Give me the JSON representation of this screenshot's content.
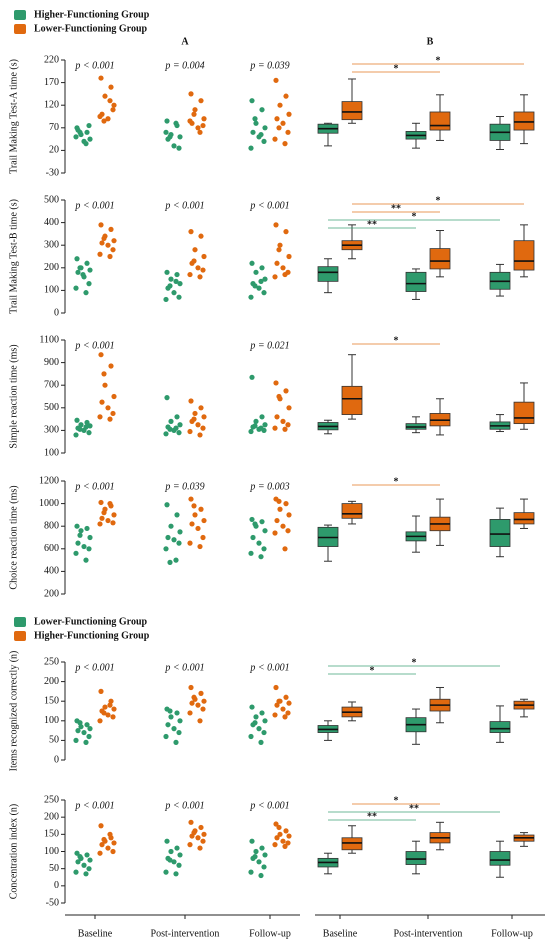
{
  "panel_labels": [
    "A",
    "B"
  ],
  "categories": [
    "Baseline",
    "Post-intervention",
    "Follow-up"
  ],
  "legends": [
    {
      "entries": [
        {
          "name": "Higher-Functioning Group",
          "color": "#2e9a6c"
        },
        {
          "name": "Lower-Functioning Group",
          "color": "#e0690f"
        }
      ]
    },
    {
      "entries": [
        {
          "name": "Lower-Functioning Group",
          "color": "#2e9a6c"
        },
        {
          "name": "Higher-Functioning Group",
          "color": "#e0690f"
        }
      ]
    }
  ],
  "chart_data": [
    {
      "type": "stripbox",
      "ylabel": "Trail Making Test-A time (s)",
      "ylim": [
        -30,
        220
      ],
      "yticks": [
        -30,
        20,
        70,
        120,
        170,
        220
      ],
      "pvalues": [
        "p < 0.001",
        "p = 0.004",
        "p = 0.039"
      ],
      "series": [
        {
          "color": "#2e9a6c",
          "points": [
            [
              70,
              60,
              55,
              45,
              65,
              40,
              75,
              50,
              35,
              60
            ],
            [
              85,
              75,
              55,
              50,
              45,
              30,
              25,
              60,
              80,
              50
            ],
            [
              130,
              110,
              80,
              70,
              60,
              50,
              40,
              25,
              55,
              90
            ]
          ],
          "boxes": [
            {
              "min": 30,
              "q1": 58,
              "median": 68,
              "q3": 78,
              "max": 80
            },
            {
              "min": 25,
              "q1": 45,
              "median": 53,
              "q3": 62,
              "max": 80
            },
            {
              "min": 22,
              "q1": 42,
              "median": 60,
              "q3": 78,
              "max": 95
            }
          ]
        },
        {
          "color": "#e0690f",
          "points": [
            [
              180,
              160,
              140,
              120,
              100,
              90,
              110,
              95,
              130,
              85
            ],
            [
              145,
              130,
              110,
              90,
              80,
              70,
              75,
              85,
              60,
              100
            ],
            [
              175,
              140,
              120,
              100,
              90,
              80,
              60,
              45,
              35,
              70
            ]
          ],
          "boxes": [
            {
              "min": 80,
              "q1": 88,
              "median": 105,
              "q3": 128,
              "max": 178
            },
            {
              "min": 42,
              "q1": 65,
              "median": 75,
              "q3": 105,
              "max": 143
            },
            {
              "min": 35,
              "q1": 65,
              "median": 83,
              "q3": 105,
              "max": 143
            }
          ]
        }
      ],
      "brackets": [
        {
          "label": "*",
          "series": 1,
          "from": 0,
          "to": 2
        },
        {
          "label": "*",
          "series": 1,
          "from": 0,
          "to": 1
        }
      ]
    },
    {
      "type": "stripbox",
      "ylabel": "Trail Making Test-B time (s)",
      "ylim": [
        0,
        500
      ],
      "yticks": [
        0,
        100,
        200,
        300,
        400,
        500
      ],
      "pvalues": [
        "p < 0.001",
        "p < 0.001",
        "p < 0.001"
      ],
      "series": [
        {
          "color": "#2e9a6c",
          "points": [
            [
              240,
              220,
              200,
              190,
              180,
              160,
              130,
              110,
              90,
              200,
              170
            ],
            [
              180,
              170,
              150,
              130,
              110,
              90,
              70,
              60,
              140,
              120
            ],
            [
              220,
              200,
              180,
              150,
              130,
              110,
              90,
              70,
              140,
              120
            ]
          ],
          "boxes": [
            {
              "min": 90,
              "q1": 140,
              "median": 180,
              "q3": 205,
              "max": 240
            },
            {
              "min": 60,
              "q1": 95,
              "median": 130,
              "q3": 180,
              "max": 195
            },
            {
              "min": 75,
              "q1": 105,
              "median": 140,
              "q3": 180,
              "max": 215
            }
          ]
        },
        {
          "color": "#e0690f",
          "points": [
            [
              390,
              370,
              340,
              320,
              310,
              300,
              280,
              260,
              250,
              330
            ],
            [
              360,
              340,
              280,
              250,
              220,
              200,
              190,
              170,
              160,
              230
            ],
            [
              390,
              360,
              300,
              250,
              220,
              200,
              180,
              160,
              170,
              280
            ]
          ],
          "boxes": [
            {
              "min": 240,
              "q1": 280,
              "median": 300,
              "q3": 320,
              "max": 390
            },
            {
              "min": 160,
              "q1": 195,
              "median": 230,
              "q3": 285,
              "max": 365
            },
            {
              "min": 160,
              "q1": 190,
              "median": 230,
              "q3": 320,
              "max": 390
            }
          ]
        }
      ],
      "brackets": [
        {
          "label": "*",
          "series": 1,
          "from": 0,
          "to": 2
        },
        {
          "label": "**",
          "series": 1,
          "from": 0,
          "to": 1
        },
        {
          "label": "*",
          "series": 0,
          "from": 0,
          "to": 2
        },
        {
          "label": "**",
          "series": 0,
          "from": 0,
          "to": 1
        }
      ]
    },
    {
      "type": "stripbox",
      "ylabel": "Simple reaction time (ms)",
      "ylim": [
        100,
        1100
      ],
      "yticks": [
        100,
        300,
        500,
        700,
        900,
        1100
      ],
      "pvalues": [
        "p < 0.001",
        null,
        "p = 0.021"
      ],
      "series": [
        {
          "color": "#2e9a6c",
          "points": [
            [
              390,
              370,
              350,
              340,
              320,
              300,
              280,
              260,
              330,
              310
            ],
            [
              590,
              420,
              380,
              350,
              330,
              300,
              280,
              270,
              320,
              310
            ],
            [
              770,
              420,
              380,
              350,
              330,
              310,
              300,
              290,
              320,
              340
            ]
          ],
          "boxes": [
            {
              "min": 270,
              "q1": 305,
              "median": 335,
              "q3": 370,
              "max": 390
            },
            {
              "min": 280,
              "q1": 310,
              "median": 330,
              "q3": 360,
              "max": 420
            },
            {
              "min": 290,
              "q1": 310,
              "median": 340,
              "q3": 375,
              "max": 440
            }
          ]
        },
        {
          "color": "#e0690f",
          "points": [
            [
              970,
              870,
              700,
              600,
              550,
              500,
              450,
              420,
              400,
              800
            ],
            [
              560,
              500,
              450,
              420,
              380,
              350,
              320,
              290,
              260,
              400
            ],
            [
              720,
              650,
              580,
              500,
              420,
              380,
              350,
              320,
              310,
              600
            ]
          ],
          "boxes": [
            {
              "min": 400,
              "q1": 440,
              "median": 580,
              "q3": 690,
              "max": 970
            },
            {
              "min": 260,
              "q1": 340,
              "median": 390,
              "q3": 450,
              "max": 580
            },
            {
              "min": 310,
              "q1": 360,
              "median": 410,
              "q3": 550,
              "max": 720
            }
          ]
        }
      ],
      "brackets": [
        {
          "label": "*",
          "series": 1,
          "from": 0,
          "to": 1
        }
      ]
    },
    {
      "type": "stripbox",
      "ylabel": "Choice reaction time (ms)",
      "ylim": [
        200,
        1200
      ],
      "yticks": [
        200,
        400,
        600,
        800,
        1000,
        1200
      ],
      "pvalues": [
        "p < 0.001",
        "p = 0.039",
        "p = 0.003"
      ],
      "series": [
        {
          "color": "#2e9a6c",
          "points": [
            [
              800,
              780,
              760,
              700,
              650,
              620,
              600,
              560,
              500,
              720
            ],
            [
              990,
              900,
              800,
              750,
              700,
              680,
              650,
              600,
              500,
              480
            ],
            [
              860,
              840,
              800,
              760,
              700,
              650,
              600,
              560,
              530,
              820
            ]
          ],
          "boxes": [
            {
              "min": 490,
              "q1": 620,
              "median": 700,
              "q3": 790,
              "max": 810
            },
            {
              "min": 570,
              "q1": 670,
              "median": 710,
              "q3": 750,
              "max": 890
            },
            {
              "min": 530,
              "q1": 620,
              "median": 730,
              "q3": 860,
              "max": 960
            }
          ]
        },
        {
          "color": "#e0690f",
          "points": [
            [
              1010,
              980,
              950,
              900,
              870,
              850,
              830,
              820,
              1000,
              920
            ],
            [
              1040,
              950,
              900,
              850,
              820,
              780,
              700,
              650,
              620,
              980
            ],
            [
              1040,
              1000,
              950,
              900,
              850,
              800,
              760,
              740,
              600,
              1020
            ]
          ],
          "boxes": [
            {
              "min": 820,
              "q1": 870,
              "median": 910,
              "q3": 1000,
              "max": 1020
            },
            {
              "min": 630,
              "q1": 760,
              "median": 820,
              "q3": 880,
              "max": 1040
            },
            {
              "min": 780,
              "q1": 820,
              "median": 860,
              "q3": 920,
              "max": 1040
            }
          ]
        }
      ],
      "brackets": [
        {
          "label": "*",
          "series": 1,
          "from": 0,
          "to": 1
        }
      ]
    },
    {
      "type": "stripbox",
      "ylabel": "Items recognized correctly (n)",
      "ylim": [
        0,
        250
      ],
      "yticks": [
        0,
        50,
        100,
        150,
        200,
        250
      ],
      "pvalues": [
        "p < 0.001",
        "p < 0.001",
        "p < 0.001"
      ],
      "series": [
        {
          "color": "#2e9a6c",
          "points": [
            [
              100,
              90,
              85,
              80,
              75,
              70,
              60,
              50,
              45,
              95
            ],
            [
              130,
              120,
              110,
              100,
              90,
              80,
              70,
              60,
              45,
              125
            ],
            [
              135,
              120,
              110,
              100,
              90,
              80,
              70,
              60,
              45,
              95
            ]
          ],
          "boxes": [
            {
              "min": 50,
              "q1": 70,
              "median": 78,
              "q3": 88,
              "max": 100
            },
            {
              "min": 40,
              "q1": 72,
              "median": 90,
              "q3": 108,
              "max": 130
            },
            {
              "min": 45,
              "q1": 70,
              "median": 80,
              "q3": 98,
              "max": 138
            }
          ]
        },
        {
          "color": "#e0690f",
          "points": [
            [
              175,
              150,
              135,
              130,
              125,
              115,
              110,
              100,
              140,
              120
            ],
            [
              185,
              170,
              155,
              150,
              145,
              140,
              130,
              120,
              100,
              160
            ],
            [
              185,
              160,
              150,
              145,
              140,
              130,
              120,
              115,
              110,
              150
            ]
          ],
          "boxes": [
            {
              "min": 100,
              "q1": 110,
              "median": 122,
              "q3": 135,
              "max": 148
            },
            {
              "min": 95,
              "q1": 125,
              "median": 140,
              "q3": 155,
              "max": 185
            },
            {
              "min": 110,
              "q1": 130,
              "median": 140,
              "q3": 150,
              "max": 155
            }
          ]
        }
      ],
      "brackets": [
        {
          "label": "*",
          "series": 0,
          "from": 0,
          "to": 2
        },
        {
          "label": "*",
          "series": 0,
          "from": 0,
          "to": 1
        }
      ]
    },
    {
      "type": "stripbox",
      "ylabel": "Concentration index (n)",
      "ylim": [
        -50,
        250
      ],
      "yticks": [
        -50,
        0,
        50,
        100,
        150,
        200,
        250
      ],
      "pvalues": [
        "p < 0.001",
        "p < 0.001",
        "p < 0.001"
      ],
      "series": [
        {
          "color": "#2e9a6c",
          "points": [
            [
              95,
              90,
              80,
              75,
              70,
              60,
              50,
              40,
              35,
              85
            ],
            [
              130,
              110,
              100,
              90,
              80,
              70,
              60,
              40,
              35,
              75
            ],
            [
              130,
              110,
              100,
              90,
              80,
              70,
              55,
              40,
              30,
              85
            ]
          ],
          "boxes": [
            {
              "min": 35,
              "q1": 55,
              "median": 68,
              "q3": 80,
              "max": 95
            },
            {
              "min": 35,
              "q1": 62,
              "median": 78,
              "q3": 100,
              "max": 130
            },
            {
              "min": 25,
              "q1": 60,
              "median": 75,
              "q3": 100,
              "max": 130
            }
          ]
        },
        {
          "color": "#e0690f",
          "points": [
            [
              175,
              140,
              130,
              125,
              120,
              110,
              100,
              95,
              150,
              135
            ],
            [
              185,
              170,
              160,
              150,
              145,
              140,
              130,
              120,
              110,
              155
            ],
            [
              180,
              160,
              150,
              145,
              140,
              130,
              125,
              120,
              115,
              170
            ]
          ],
          "boxes": [
            {
              "min": 95,
              "q1": 105,
              "median": 125,
              "q3": 140,
              "max": 175
            },
            {
              "min": 105,
              "q1": 125,
              "median": 140,
              "q3": 155,
              "max": 185
            },
            {
              "min": 115,
              "q1": 130,
              "median": 140,
              "q3": 148,
              "max": 155
            }
          ]
        }
      ],
      "brackets": [
        {
          "label": "*",
          "series": 1,
          "from": 0,
          "to": 1
        },
        {
          "label": "**",
          "series": 0,
          "from": 0,
          "to": 2
        },
        {
          "label": "**",
          "series": 0,
          "from": 0,
          "to": 1
        }
      ]
    }
  ]
}
